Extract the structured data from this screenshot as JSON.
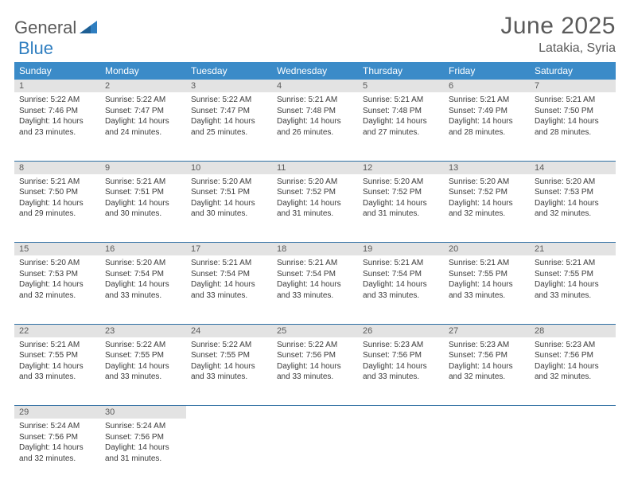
{
  "logo": {
    "part1": "General",
    "part2": "Blue"
  },
  "title": "June 2025",
  "location": "Latakia, Syria",
  "colors": {
    "header_bg": "#3b8bc8",
    "header_fg": "#ffffff",
    "daynum_bg": "#e3e3e3",
    "border": "#2f6fa3",
    "text": "#3a3a3a",
    "title_color": "#5a5a5a",
    "logo_blue": "#2f7ec0"
  },
  "dayHeaders": [
    "Sunday",
    "Monday",
    "Tuesday",
    "Wednesday",
    "Thursday",
    "Friday",
    "Saturday"
  ],
  "weeks": [
    {
      "nums": [
        "1",
        "2",
        "3",
        "4",
        "5",
        "6",
        "7"
      ],
      "cells": [
        {
          "sr": "Sunrise: 5:22 AM",
          "ss": "Sunset: 7:46 PM",
          "d1": "Daylight: 14 hours",
          "d2": "and 23 minutes."
        },
        {
          "sr": "Sunrise: 5:22 AM",
          "ss": "Sunset: 7:47 PM",
          "d1": "Daylight: 14 hours",
          "d2": "and 24 minutes."
        },
        {
          "sr": "Sunrise: 5:22 AM",
          "ss": "Sunset: 7:47 PM",
          "d1": "Daylight: 14 hours",
          "d2": "and 25 minutes."
        },
        {
          "sr": "Sunrise: 5:21 AM",
          "ss": "Sunset: 7:48 PM",
          "d1": "Daylight: 14 hours",
          "d2": "and 26 minutes."
        },
        {
          "sr": "Sunrise: 5:21 AM",
          "ss": "Sunset: 7:48 PM",
          "d1": "Daylight: 14 hours",
          "d2": "and 27 minutes."
        },
        {
          "sr": "Sunrise: 5:21 AM",
          "ss": "Sunset: 7:49 PM",
          "d1": "Daylight: 14 hours",
          "d2": "and 28 minutes."
        },
        {
          "sr": "Sunrise: 5:21 AM",
          "ss": "Sunset: 7:50 PM",
          "d1": "Daylight: 14 hours",
          "d2": "and 28 minutes."
        }
      ]
    },
    {
      "nums": [
        "8",
        "9",
        "10",
        "11",
        "12",
        "13",
        "14"
      ],
      "cells": [
        {
          "sr": "Sunrise: 5:21 AM",
          "ss": "Sunset: 7:50 PM",
          "d1": "Daylight: 14 hours",
          "d2": "and 29 minutes."
        },
        {
          "sr": "Sunrise: 5:21 AM",
          "ss": "Sunset: 7:51 PM",
          "d1": "Daylight: 14 hours",
          "d2": "and 30 minutes."
        },
        {
          "sr": "Sunrise: 5:20 AM",
          "ss": "Sunset: 7:51 PM",
          "d1": "Daylight: 14 hours",
          "d2": "and 30 minutes."
        },
        {
          "sr": "Sunrise: 5:20 AM",
          "ss": "Sunset: 7:52 PM",
          "d1": "Daylight: 14 hours",
          "d2": "and 31 minutes."
        },
        {
          "sr": "Sunrise: 5:20 AM",
          "ss": "Sunset: 7:52 PM",
          "d1": "Daylight: 14 hours",
          "d2": "and 31 minutes."
        },
        {
          "sr": "Sunrise: 5:20 AM",
          "ss": "Sunset: 7:52 PM",
          "d1": "Daylight: 14 hours",
          "d2": "and 32 minutes."
        },
        {
          "sr": "Sunrise: 5:20 AM",
          "ss": "Sunset: 7:53 PM",
          "d1": "Daylight: 14 hours",
          "d2": "and 32 minutes."
        }
      ]
    },
    {
      "nums": [
        "15",
        "16",
        "17",
        "18",
        "19",
        "20",
        "21"
      ],
      "cells": [
        {
          "sr": "Sunrise: 5:20 AM",
          "ss": "Sunset: 7:53 PM",
          "d1": "Daylight: 14 hours",
          "d2": "and 32 minutes."
        },
        {
          "sr": "Sunrise: 5:20 AM",
          "ss": "Sunset: 7:54 PM",
          "d1": "Daylight: 14 hours",
          "d2": "and 33 minutes."
        },
        {
          "sr": "Sunrise: 5:21 AM",
          "ss": "Sunset: 7:54 PM",
          "d1": "Daylight: 14 hours",
          "d2": "and 33 minutes."
        },
        {
          "sr": "Sunrise: 5:21 AM",
          "ss": "Sunset: 7:54 PM",
          "d1": "Daylight: 14 hours",
          "d2": "and 33 minutes."
        },
        {
          "sr": "Sunrise: 5:21 AM",
          "ss": "Sunset: 7:54 PM",
          "d1": "Daylight: 14 hours",
          "d2": "and 33 minutes."
        },
        {
          "sr": "Sunrise: 5:21 AM",
          "ss": "Sunset: 7:55 PM",
          "d1": "Daylight: 14 hours",
          "d2": "and 33 minutes."
        },
        {
          "sr": "Sunrise: 5:21 AM",
          "ss": "Sunset: 7:55 PM",
          "d1": "Daylight: 14 hours",
          "d2": "and 33 minutes."
        }
      ]
    },
    {
      "nums": [
        "22",
        "23",
        "24",
        "25",
        "26",
        "27",
        "28"
      ],
      "cells": [
        {
          "sr": "Sunrise: 5:21 AM",
          "ss": "Sunset: 7:55 PM",
          "d1": "Daylight: 14 hours",
          "d2": "and 33 minutes."
        },
        {
          "sr": "Sunrise: 5:22 AM",
          "ss": "Sunset: 7:55 PM",
          "d1": "Daylight: 14 hours",
          "d2": "and 33 minutes."
        },
        {
          "sr": "Sunrise: 5:22 AM",
          "ss": "Sunset: 7:55 PM",
          "d1": "Daylight: 14 hours",
          "d2": "and 33 minutes."
        },
        {
          "sr": "Sunrise: 5:22 AM",
          "ss": "Sunset: 7:56 PM",
          "d1": "Daylight: 14 hours",
          "d2": "and 33 minutes."
        },
        {
          "sr": "Sunrise: 5:23 AM",
          "ss": "Sunset: 7:56 PM",
          "d1": "Daylight: 14 hours",
          "d2": "and 33 minutes."
        },
        {
          "sr": "Sunrise: 5:23 AM",
          "ss": "Sunset: 7:56 PM",
          "d1": "Daylight: 14 hours",
          "d2": "and 32 minutes."
        },
        {
          "sr": "Sunrise: 5:23 AM",
          "ss": "Sunset: 7:56 PM",
          "d1": "Daylight: 14 hours",
          "d2": "and 32 minutes."
        }
      ]
    },
    {
      "nums": [
        "29",
        "30",
        "",
        "",
        "",
        "",
        ""
      ],
      "cells": [
        {
          "sr": "Sunrise: 5:24 AM",
          "ss": "Sunset: 7:56 PM",
          "d1": "Daylight: 14 hours",
          "d2": "and 32 minutes."
        },
        {
          "sr": "Sunrise: 5:24 AM",
          "ss": "Sunset: 7:56 PM",
          "d1": "Daylight: 14 hours",
          "d2": "and 31 minutes."
        },
        null,
        null,
        null,
        null,
        null
      ]
    }
  ]
}
